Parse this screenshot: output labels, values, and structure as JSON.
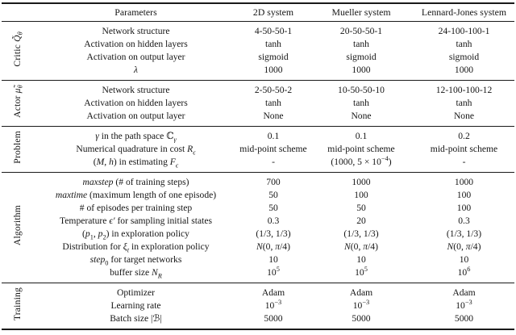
{
  "accent_colors": {
    "text": "#151515",
    "rule": "#1a1a1a",
    "background": "#ffffff"
  },
  "header": {
    "parameters": "Parameters",
    "systems": [
      "2D system",
      "Mueller system",
      "Lennard-Jones system"
    ]
  },
  "sections": [
    {
      "group": "Critic <i>Q̃</i><sub><i>θ</i></sub>",
      "rows": [
        {
          "label": "Network structure",
          "values": [
            "4-50-50-1",
            "20-50-50-1",
            "24-100-100-1"
          ]
        },
        {
          "label": "Activation on hidden layers",
          "values": [
            "tanh",
            "tanh",
            "tanh"
          ]
        },
        {
          "label": "Activation on output layer",
          "values": [
            "sigmoid",
            "sigmoid",
            "sigmoid"
          ]
        },
        {
          "label": "<i>λ</i>",
          "values": [
            "1000",
            "1000",
            "1000"
          ]
        }
      ]
    },
    {
      "group": "Actor <i>μ̃</i><sub><i>θ</i></sub>",
      "rows": [
        {
          "label": "Network structure",
          "values": [
            "2-50-50-2",
            "10-50-50-10",
            "12-100-100-12"
          ]
        },
        {
          "label": "Activation on hidden layers",
          "values": [
            "tanh",
            "tanh",
            "tanh"
          ]
        },
        {
          "label": "Activation on output layer",
          "values": [
            "None",
            "None",
            "None"
          ]
        }
      ]
    },
    {
      "group": "Problem",
      "rows": [
        {
          "label": "<i>γ</i> in the path space ℂ<sub><i>γ</i></sub>",
          "values": [
            "0.1",
            "0.1",
            "0.2"
          ]
        },
        {
          "label": "Numerical quadrature in cost <i>R</i><sub><i>ϵ</i></sub>",
          "values": [
            "mid-point scheme",
            "mid-point scheme",
            "mid-point scheme"
          ]
        },
        {
          "label": "(<i>M</i>, <i>h</i>) in estimating <i>F</i><sub><i>ϵ</i></sub>",
          "values": [
            "-",
            "(1000, 5 × 10<sup>−4</sup>)",
            "-"
          ]
        }
      ]
    },
    {
      "group": "Algorithm",
      "rows": [
        {
          "label": "<i>maxstep</i> (# of training steps)",
          "values": [
            "700",
            "1000",
            "1000"
          ]
        },
        {
          "label": "<i>maxtime</i> (maximum length of one episode)",
          "values": [
            "50",
            "100",
            "100"
          ]
        },
        {
          "label": "# of episodes per training step",
          "values": [
            "50",
            "50",
            "100"
          ]
        },
        {
          "label": "Temperature <i>ϵ′</i> for sampling initial states",
          "values": [
            "0.3",
            "20",
            "0.3"
          ]
        },
        {
          "label": "(<i>p</i><sub>1</sub>, <i>p</i><sub>2</sub>) in exploration policy",
          "values": [
            "(1/3, 1/3)",
            "(1/3, 1/3)",
            "(1/3, 1/3)"
          ]
        },
        {
          "label": "Distribution for <i>ξ</i><sub><i>t</i></sub> in exploration policy",
          "values": [
            "<i>N</i>(0, <i>π</i>/4)",
            "<i>N</i>(0, <i>π</i>/4)",
            "<i>N</i>(0, <i>π</i>/4)"
          ]
        },
        {
          "label": "<i>step</i><sub>0</sub> for target networks",
          "values": [
            "10",
            "10",
            "10"
          ]
        },
        {
          "label": "buffer size <i>N</i><sub><i>R</i></sub>",
          "values": [
            "10<sup>5</sup>",
            "10<sup>5</sup>",
            "10<sup>6</sup>"
          ]
        }
      ]
    },
    {
      "group": "Training",
      "rows": [
        {
          "label": "Optimizer",
          "values": [
            "Adam",
            "Adam",
            "Adam"
          ]
        },
        {
          "label": "Learning rate",
          "values": [
            "10<sup>−3</sup>",
            "10<sup>−3</sup>",
            "10<sup>−3</sup>"
          ]
        },
        {
          "label": "Batch size |ℬ|",
          "values": [
            "5000",
            "5000",
            "5000"
          ]
        }
      ]
    }
  ]
}
